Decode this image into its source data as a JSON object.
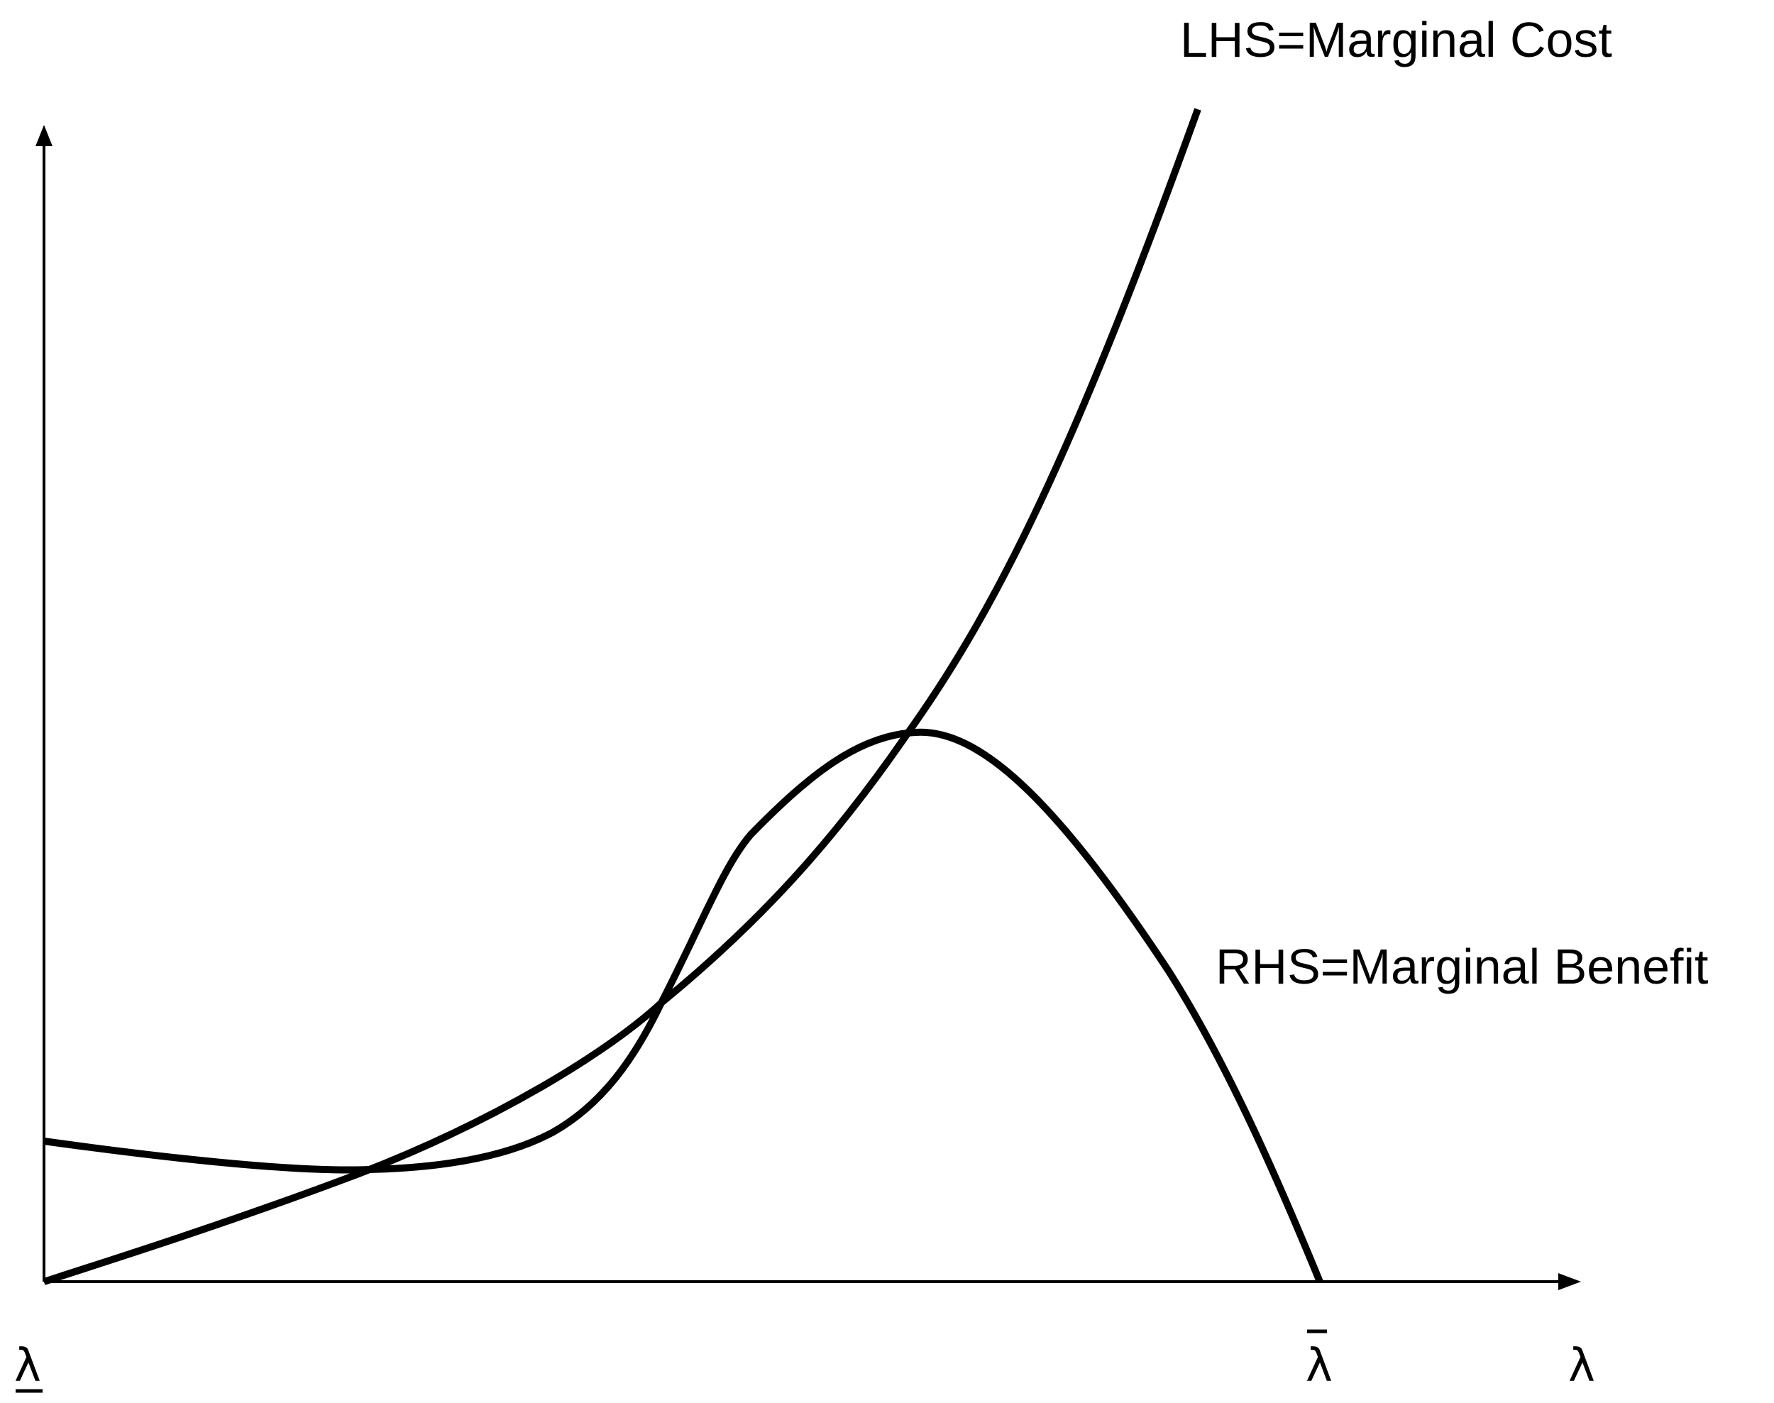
{
  "diagram": {
    "curves": [
      {
        "id": "lhs",
        "label": "LHS=Marginal Cost"
      },
      {
        "id": "rhs",
        "label": "RHS=Marginal Benefit"
      }
    ],
    "x_axis": {
      "lower_bound_label": "λ",
      "upper_bound_label": "λ",
      "axis_label": "λ"
    }
  }
}
